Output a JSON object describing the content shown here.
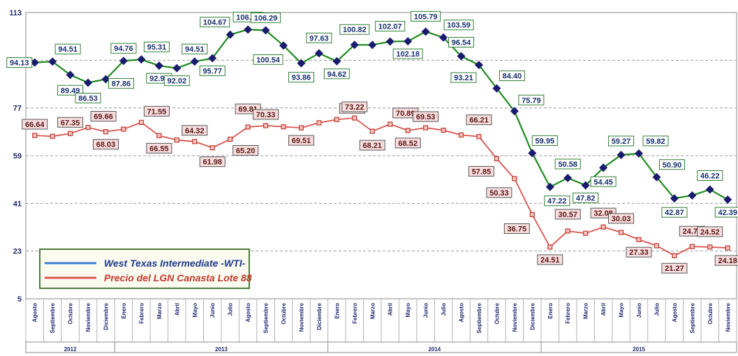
{
  "chart_data": {
    "type": "line",
    "title": "",
    "xlabel": "",
    "ylabel": "",
    "ylim": [
      5,
      113
    ],
    "yticks": [
      5,
      23,
      41,
      59,
      77,
      95,
      113
    ],
    "grid": "horizontal dashed",
    "legend_position": "bottom-left",
    "categories": [
      "Agosto",
      "Septiembre",
      "Octubre",
      "Noviembre",
      "Diciembre",
      "Enero",
      "Febrero",
      "Marzo",
      "Abril",
      "Mayo",
      "Junio",
      "Julio",
      "Agosto",
      "Septiembre",
      "Octubre",
      "Noviembre",
      "Diciembre",
      "Enero",
      "Febrero",
      "Marzo",
      "Abril",
      "Mayo",
      "Junio",
      "Julio",
      "Agosto",
      "Septiembre",
      "Octubre",
      "Noviembre",
      "Diciembre",
      "Enero",
      "Febrero",
      "Marzo",
      "Abril",
      "Mayo",
      "Junio",
      "Julio",
      "Agosto",
      "Septiembre",
      "Octubre",
      "Noviembre"
    ],
    "years": [
      {
        "label": "2012",
        "start": 0,
        "end": 4
      },
      {
        "label": "2013",
        "start": 5,
        "end": 16
      },
      {
        "label": "2014",
        "start": 17,
        "end": 28
      },
      {
        "label": "2015",
        "start": 29,
        "end": 39
      }
    ],
    "series": [
      {
        "name": "West Texas Intermediate -WTI-",
        "color": "#1e8a1e",
        "marker_color": "#1a1a6e",
        "values": [
          94.13,
          94.51,
          89.49,
          86.53,
          87.86,
          94.76,
          95.31,
          92.94,
          92.02,
          94.51,
          95.77,
          104.67,
          106.57,
          106.29,
          100.54,
          93.86,
          97.63,
          94.62,
          100.82,
          100.8,
          102.07,
          102.18,
          105.79,
          103.59,
          96.54,
          93.21,
          84.4,
          75.79,
          59.95,
          47.22,
          50.58,
          47.82,
          54.45,
          59.27,
          59.82,
          50.9,
          42.87,
          44.0,
          46.22,
          42.39
        ],
        "labels": [
          "94.13",
          "94.51",
          "89.49",
          "86.53",
          "87.86",
          "94.76",
          "95.31",
          "92.94",
          "92.02",
          "94.51",
          "95.77",
          "104.67",
          "106.57",
          "106.29",
          "100.54",
          "93.86",
          "97.63",
          "94.62",
          "100.82",
          "",
          "102.07",
          "102.18",
          "105.79",
          "103.59",
          "96.54",
          "93.21",
          "84.40",
          "75.79",
          "59.95",
          "47.22",
          "50.58",
          "47.82",
          "54.45",
          "59.27",
          "59.82",
          "50.90",
          "42.87",
          "",
          "46.22",
          "42.39"
        ]
      },
      {
        "name": "Precio del LGN Canasta Lote 88",
        "color": "#d9534f",
        "marker_color": "#c0392b",
        "values": [
          66.64,
          66.3,
          67.35,
          69.66,
          68.03,
          69.0,
          71.55,
          66.55,
          64.9,
          64.32,
          61.98,
          65.2,
          69.81,
          70.33,
          69.9,
          69.51,
          71.4,
          72.63,
          73.22,
          68.21,
          70.89,
          68.52,
          69.53,
          68.6,
          66.8,
          66.21,
          57.85,
          50.33,
          36.75,
          24.51,
          30.57,
          29.7,
          32.08,
          30.03,
          27.33,
          25.0,
          21.27,
          24.71,
          24.52,
          24.18
        ],
        "labels": [
          "66.64",
          "",
          "67.35",
          "69.66",
          "68.03",
          "",
          "71.55",
          "66.55",
          "",
          "64.32",
          "61.98",
          "65.20",
          "69.81",
          "70.33",
          "",
          "69.51",
          "",
          "72.63",
          "73.22",
          "68.21",
          "70.89",
          "68.52",
          "69.53",
          "",
          "",
          "66.21",
          "57.85",
          "50.33",
          "36.75",
          "24.51",
          "30.57",
          "",
          "32.08",
          "30.03",
          "27.33",
          "",
          "21.27",
          "24.71",
          "24.52",
          "24.18"
        ]
      }
    ]
  }
}
